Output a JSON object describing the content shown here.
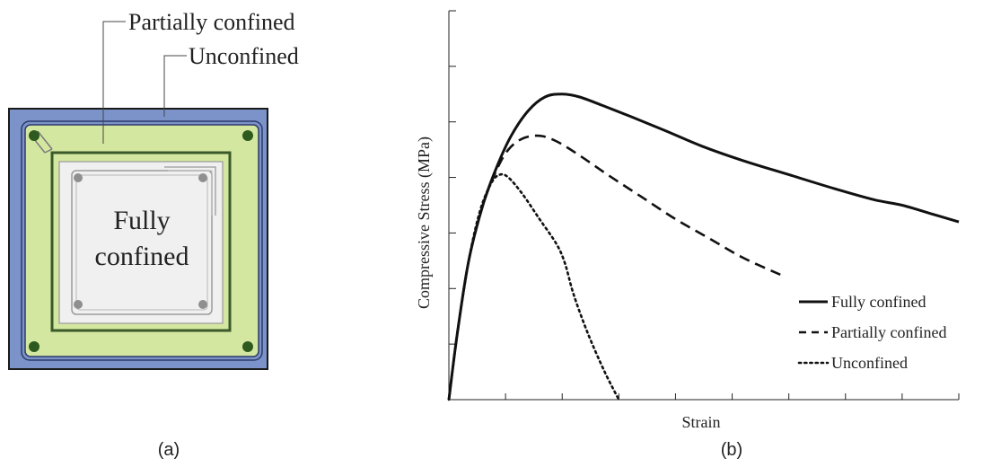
{
  "panel_a": {
    "caption": "(a)",
    "labels": {
      "partially_confined": "Partially confined",
      "unconfined": "Unconfined",
      "fully_confined_line1": "Fully",
      "fully_confined_line2": "confined"
    },
    "colors": {
      "unconfined": "#7b93c9",
      "partially_confined": "#d4e7a0",
      "fully_confined": "#f0f0f0",
      "outline": "#3a5a2a",
      "rebar_outer": "#2f5a1f",
      "rebar_inner": "#8f8f8f"
    }
  },
  "panel_b": {
    "caption": "(b)",
    "chart_data": {
      "type": "line",
      "xlabel": "Strain",
      "ylabel": "Compressive Stress (MPa)",
      "xlim": [
        0,
        9
      ],
      "ylim": [
        0,
        7
      ],
      "x_ticks": [
        1,
        2,
        3,
        4,
        5,
        6,
        7,
        8,
        9
      ],
      "y_ticks": [
        1,
        2,
        3,
        4,
        5,
        6,
        7
      ],
      "grid": false,
      "legend_position": "bottom-right",
      "series": [
        {
          "name": "Fully confined",
          "style": "solid",
          "x": [
            0,
            0.15,
            0.35,
            0.6,
            0.85,
            1.1,
            1.4,
            1.7,
            2.0,
            2.3,
            2.7,
            3.2,
            3.8,
            4.5,
            5.2,
            6.0,
            6.8,
            7.5,
            8.0,
            8.5,
            9.0
          ],
          "y": [
            0,
            1.2,
            2.5,
            3.5,
            4.2,
            4.75,
            5.2,
            5.45,
            5.5,
            5.45,
            5.3,
            5.1,
            4.85,
            4.55,
            4.3,
            4.05,
            3.8,
            3.6,
            3.5,
            3.35,
            3.2
          ]
        },
        {
          "name": "Partially confined",
          "style": "dashed",
          "x": [
            0,
            0.15,
            0.35,
            0.6,
            0.85,
            1.05,
            1.3,
            1.6,
            1.9,
            2.3,
            2.8,
            3.4,
            4.0,
            4.6,
            5.2,
            5.85
          ],
          "y": [
            0,
            1.2,
            2.5,
            3.5,
            4.15,
            4.5,
            4.7,
            4.75,
            4.65,
            4.4,
            4.05,
            3.65,
            3.25,
            2.9,
            2.55,
            2.25
          ]
        },
        {
          "name": "Unconfined",
          "style": "dotted",
          "x": [
            0,
            0.15,
            0.35,
            0.55,
            0.75,
            0.9,
            1.05,
            1.3,
            1.6,
            1.9,
            2.05,
            2.2,
            2.45,
            2.75,
            3.0
          ],
          "y": [
            0,
            1.2,
            2.5,
            3.4,
            3.9,
            4.05,
            4.0,
            3.7,
            3.25,
            2.8,
            2.45,
            1.9,
            1.2,
            0.5,
            0
          ]
        }
      ]
    }
  }
}
